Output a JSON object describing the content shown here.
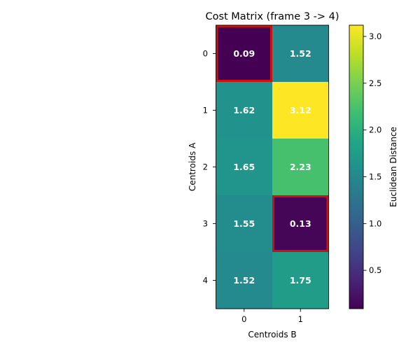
{
  "chart_data": {
    "type": "heatmap",
    "title": "Cost Matrix (frame 3 -> 4)",
    "xlabel": "Centroids B",
    "ylabel": "Centroids A",
    "x_categories": [
      "0",
      "1"
    ],
    "y_categories": [
      "0",
      "1",
      "2",
      "3",
      "4"
    ],
    "values": [
      [
        0.09,
        1.52
      ],
      [
        1.62,
        3.12
      ],
      [
        1.65,
        2.23
      ],
      [
        1.55,
        0.13
      ],
      [
        1.52,
        1.75
      ]
    ],
    "value_labels": [
      [
        "0.09",
        "1.52"
      ],
      [
        "1.62",
        "3.12"
      ],
      [
        "1.65",
        "2.23"
      ],
      [
        "1.55",
        "0.13"
      ],
      [
        "1.52",
        "1.75"
      ]
    ],
    "highlighted_cells": [
      [
        0,
        0
      ],
      [
        3,
        1
      ]
    ],
    "highlight_color": "#cc1111",
    "colormap": "viridis",
    "color_range": [
      0.09,
      3.12
    ],
    "colorbar": {
      "label": "Euclidean Distance",
      "ticks": [
        0.5,
        1.0,
        1.5,
        2.0,
        2.5,
        3.0
      ],
      "tick_labels": [
        "0.5",
        "1.0",
        "1.5",
        "2.0",
        "2.5",
        "3.0"
      ]
    },
    "grid": false
  }
}
